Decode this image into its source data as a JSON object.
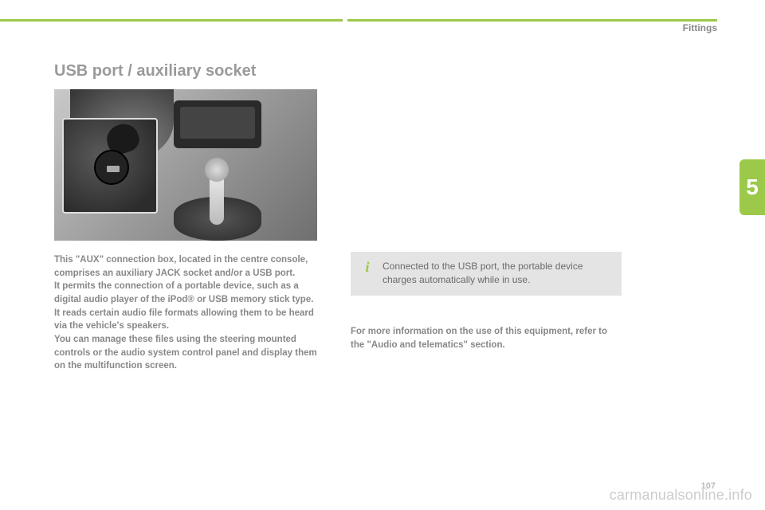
{
  "header": {
    "section_label": "Fittings"
  },
  "chapter": {
    "number": "5",
    "tab_color": "#9cc94a"
  },
  "title": "USB port / auxiliary socket",
  "body_col1": "This \"AUX\" connection box, located in the centre console, comprises an auxiliary JACK socket and/or a USB port.\nIt permits the connection of a portable device, such as a digital audio player of the iPod® or USB memory stick type.\nIt reads certain audio file formats allowing them to be heard via the vehicle's speakers.\nYou can manage these files using the steering mounted controls or the audio system control panel and display them on the multifunction screen.",
  "info_box": {
    "icon": "i",
    "text": "Connected to the USB port, the portable device charges automatically while in use."
  },
  "body_col2": "For more information on the use of this equipment, refer to the \"Audio and telematics\" section.",
  "footer": {
    "page_number": "107",
    "watermark": "carmanualsonline.info"
  },
  "colors": {
    "accent": "#9cc94a",
    "muted_text": "#888888",
    "info_bg": "#e4e4e4",
    "info_text": "#6a6a6a",
    "watermark": "#cccccc"
  }
}
